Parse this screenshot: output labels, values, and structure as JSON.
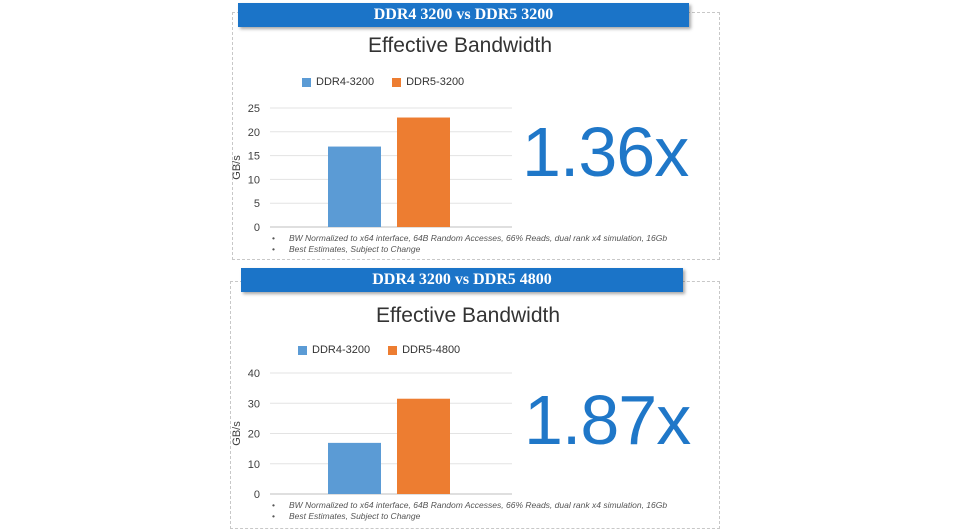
{
  "colors": {
    "banner": "#1b74c8",
    "ddr4": "#5b9bd5",
    "ddr5": "#ed7d31",
    "multiplier": "#1f77c8"
  },
  "panels": [
    {
      "banner": "DDR4 3200 vs DDR5 3200",
      "multiplier": "1.36x",
      "notes": [
        "BW Normalized to x64 interface, 64B Random Accesses, 66% Reads, dual rank x4 simulation, 16Gb",
        "Best Estimates, Subject to Change"
      ]
    },
    {
      "banner": "DDR4 3200 vs DDR5 4800",
      "multiplier": "1.87x",
      "notes": [
        "BW Normalized to x64 interface, 64B Random Accesses, 66% Reads, dual rank x4 simulation, 16Gb",
        "Best Estimates, Subject to Change"
      ]
    }
  ],
  "chart_data": [
    {
      "type": "bar",
      "title": "Effective Bandwidth",
      "ylabel": "GB/s",
      "xlabel": "",
      "ylim": [
        0,
        25
      ],
      "yticks": [
        "0",
        "5",
        "10",
        "15",
        "20",
        "25"
      ],
      "legend_position": "top-left",
      "series": [
        {
          "name": "DDR4-3200",
          "values": [
            16.9
          ]
        },
        {
          "name": "DDR5-3200",
          "values": [
            23
          ]
        }
      ]
    },
    {
      "type": "bar",
      "title": "Effective Bandwidth",
      "ylabel": "GB/s",
      "xlabel": "",
      "ylim": [
        0,
        40
      ],
      "yticks": [
        "0",
        "10",
        "20",
        "30",
        "40"
      ],
      "legend_position": "top-left",
      "series": [
        {
          "name": "DDR4-3200",
          "values": [
            16.9
          ]
        },
        {
          "name": "DDR5-4800",
          "values": [
            31.5
          ]
        }
      ]
    }
  ]
}
